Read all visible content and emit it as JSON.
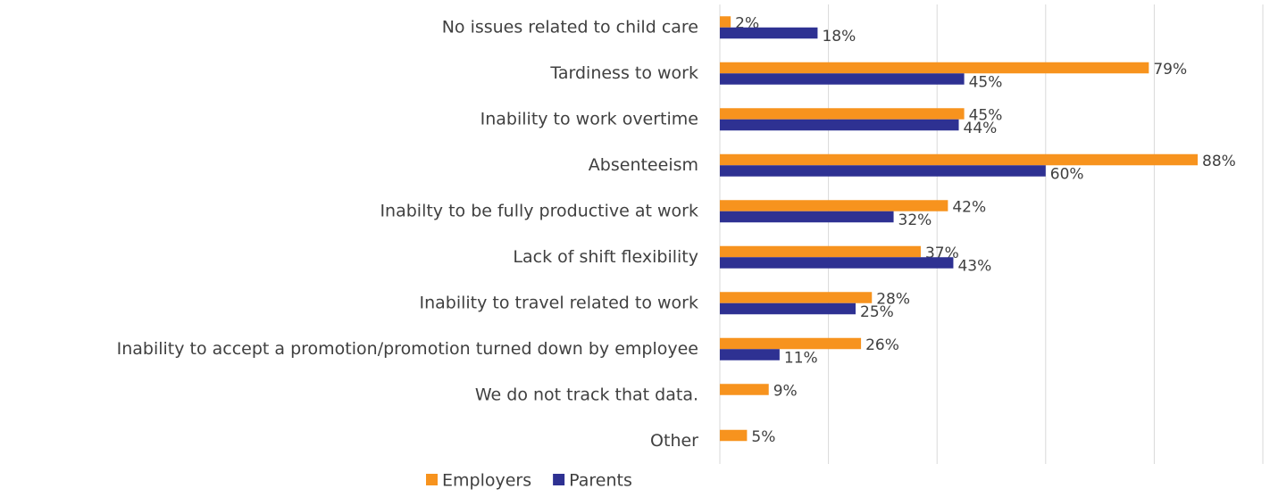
{
  "chart_data": {
    "type": "barh",
    "categories": [
      "No issues related to child care",
      "Tardiness to work",
      "Inability to work overtime",
      "Absenteeism",
      "Inabilty to be fully productive at work",
      "Lack of shift flexibility",
      "Inability to travel related to work",
      "Inability to accept a promotion/promotion turned down by employee",
      "We do not track that data.",
      "Other"
    ],
    "series": [
      {
        "name": "Employers",
        "color": "#f7931e",
        "values": [
          2,
          79,
          45,
          88,
          42,
          37,
          28,
          26,
          9,
          5
        ],
        "value_labels": [
          "2%",
          "79%",
          "45%",
          "88%",
          "42%",
          "37%",
          "28%",
          "26%",
          "9%",
          "5%"
        ]
      },
      {
        "name": "Parents",
        "color": "#2e3192",
        "values": [
          18,
          45,
          44,
          60,
          32,
          43,
          25,
          11,
          null,
          null
        ],
        "value_labels": [
          "18%",
          "45%",
          "44%",
          "60%",
          "32%",
          "43%",
          "25%",
          "11%",
          null,
          null
        ]
      }
    ],
    "xlim": [
      0,
      100
    ],
    "xticks": [
      0,
      20,
      40,
      60,
      80,
      100
    ],
    "grid": true,
    "legend": "bottom"
  }
}
